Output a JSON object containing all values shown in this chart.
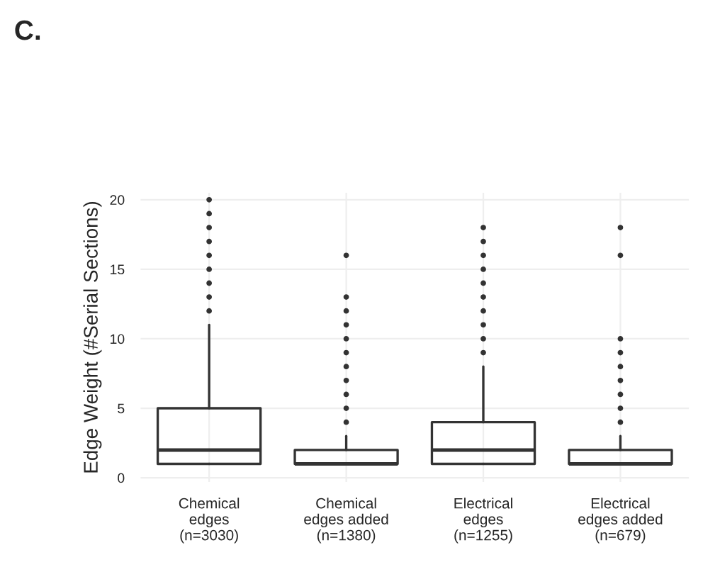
{
  "chart_data": {
    "type": "box",
    "ylabel": "Edge Weight (#Serial Sections)",
    "annotations": [
      "C."
    ],
    "categories": [
      "Chemical\nedges\n(n=3030)",
      "Chemical\nedges added\n(n=1380)",
      "Electrical\nedges\n(n=1255)",
      "Electrical\nedges added\n(n=679)"
    ],
    "boxes": [
      {
        "low": 1,
        "q1": 1,
        "median": 2,
        "q3": 5,
        "high": 11,
        "outliers": [
          12,
          13,
          14,
          15,
          16,
          17,
          18,
          19,
          20
        ]
      },
      {
        "low": 1,
        "q1": 1,
        "median": 1,
        "q3": 2,
        "high": 3,
        "outliers": [
          4,
          5,
          6,
          7,
          8,
          9,
          10,
          11,
          12,
          13,
          16
        ]
      },
      {
        "low": 1,
        "q1": 1,
        "median": 2,
        "q3": 4,
        "high": 8,
        "outliers": [
          9,
          10,
          11,
          12,
          13,
          14,
          15,
          16,
          17,
          18
        ]
      },
      {
        "low": 1,
        "q1": 1,
        "median": 1,
        "q3": 2,
        "high": 3,
        "outliers": [
          4,
          5,
          6,
          7,
          8,
          9,
          10,
          16,
          18
        ]
      }
    ],
    "ylim": [
      -0.3,
      20.5
    ],
    "yticks": [
      0,
      5,
      10,
      15,
      20
    ],
    "grid": true
  }
}
